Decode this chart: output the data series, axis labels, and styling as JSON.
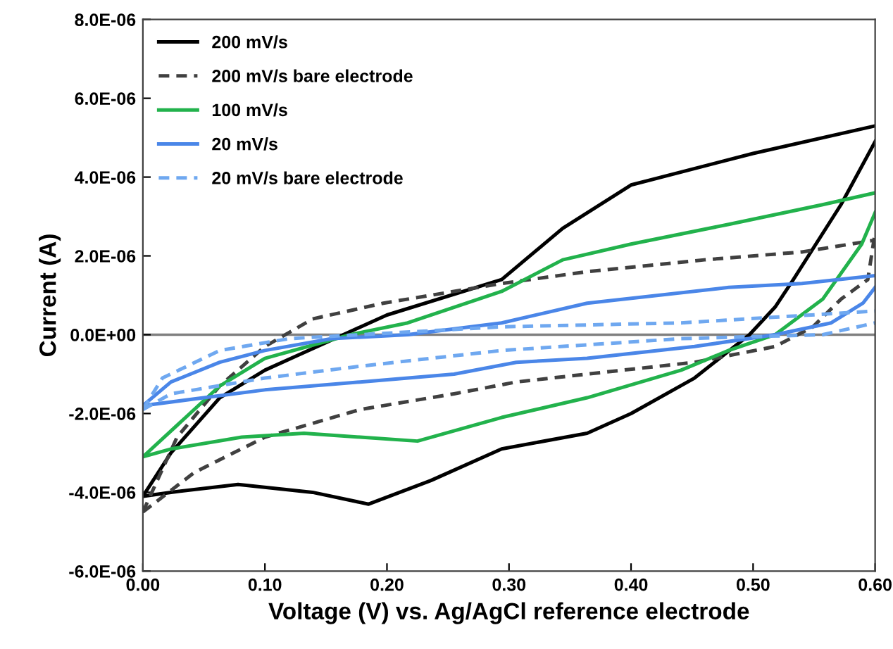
{
  "chart_data": {
    "type": "line",
    "xlabel": "Voltage (V) vs. Ag/AgCl reference electrode",
    "ylabel": "Current (A)",
    "xlim": [
      0,
      0.6
    ],
    "ylim": [
      -6e-06,
      8e-06
    ],
    "xticks": [
      {
        "value": 0,
        "label": "0.00"
      },
      {
        "value": 0.1,
        "label": "0.10"
      },
      {
        "value": 0.2,
        "label": "0.20"
      },
      {
        "value": 0.3,
        "label": "0.30"
      },
      {
        "value": 0.4,
        "label": "0.40"
      },
      {
        "value": 0.5,
        "label": "0.50"
      },
      {
        "value": 0.6,
        "label": "0.60"
      }
    ],
    "yticks": [
      {
        "value": -6e-06,
        "label": "-6.0E-06"
      },
      {
        "value": -4e-06,
        "label": "-4.0E-06"
      },
      {
        "value": -2e-06,
        "label": "-2.0E-06"
      },
      {
        "value": 0,
        "label": "0.0E+00"
      },
      {
        "value": 2e-06,
        "label": "2.0E-06"
      },
      {
        "value": 4e-06,
        "label": "4.0E-06"
      },
      {
        "value": 6e-06,
        "label": "6.0E-06"
      },
      {
        "value": 8e-06,
        "label": "8.0E-06"
      }
    ],
    "grid": false,
    "legend": "top left",
    "marker": "none",
    "ref_lines": [
      {
        "axis": "y",
        "value": 0,
        "color": "#808080",
        "line_style": "solid"
      }
    ],
    "series": [
      {
        "name": "200 mV/s",
        "color": "#000000",
        "line_style": "solid",
        "x": [
          0,
          0.023,
          0.078,
          0.139,
          0.185,
          0.236,
          0.294,
          0.364,
          0.4,
          0.452,
          0.497,
          0.518,
          0.533,
          0.572,
          0.6
        ],
        "values": [
          -4.1e-06,
          -4e-06,
          -3.8e-06,
          -4e-06,
          -4.3e-06,
          -3.7e-06,
          -2.9e-06,
          -2.5e-06,
          -2e-06,
          -1.1e-06,
          0,
          7e-07,
          1.4e-06,
          3.3e-06,
          4.9e-06
        ]
      },
      {
        "color": "#000000",
        "line_style": "solid",
        "x": [
          0,
          0.023,
          0.063,
          0.1,
          0.15,
          0.2,
          0.294,
          0.344,
          0.4,
          0.5,
          0.6
        ],
        "values": [
          -4.1e-06,
          -3e-06,
          -1.6e-06,
          -9e-07,
          -2e-07,
          5e-07,
          1.4e-06,
          2.7e-06,
          3.8e-06,
          4.6e-06,
          5.3e-06
        ]
      },
      {
        "name": "200 mV/s bare electrode",
        "color": "#404040",
        "line_style": "dashed",
        "x": [
          0,
          0.042,
          0.1,
          0.178,
          0.255,
          0.306,
          0.364,
          0.452,
          0.518,
          0.549,
          0.572,
          0.594,
          0.6
        ],
        "values": [
          -4.5e-06,
          -3.5e-06,
          -2.6e-06,
          -1.9e-06,
          -1.5e-06,
          -1.2e-06,
          -1e-06,
          -7e-07,
          -3e-07,
          2e-07,
          9e-07,
          1.4e-06,
          2.6e-06
        ]
      },
      {
        "color": "#404040",
        "line_style": "dashed",
        "x": [
          0,
          0.028,
          0.063,
          0.1,
          0.139,
          0.197,
          0.294,
          0.364,
          0.46,
          0.54,
          0.6
        ],
        "values": [
          -4.5e-06,
          -2.6e-06,
          -1.3e-06,
          -3e-07,
          4e-07,
          8e-07,
          1.3e-06,
          1.6e-06,
          1.9e-06,
          2.1e-06,
          2.4e-06
        ]
      },
      {
        "name": "100 mV/s",
        "color": "#22b24c",
        "line_style": "solid",
        "x": [
          0,
          0.023,
          0.081,
          0.132,
          0.178,
          0.225,
          0.294,
          0.364,
          0.441,
          0.48,
          0.518,
          0.557,
          0.589,
          0.6
        ],
        "values": [
          -3.1e-06,
          -2.9e-06,
          -2.6e-06,
          -2.5e-06,
          -2.6e-06,
          -2.7e-06,
          -2.1e-06,
          -1.6e-06,
          -9e-07,
          -4e-07,
          0,
          9e-07,
          2.3e-06,
          3.1e-06
        ]
      },
      {
        "color": "#22b24c",
        "line_style": "solid",
        "x": [
          0,
          0.063,
          0.1,
          0.17,
          0.217,
          0.294,
          0.344,
          0.4,
          0.48,
          0.557,
          0.6
        ],
        "values": [
          -3.1e-06,
          -1.3e-06,
          -6e-07,
          0,
          3e-07,
          1.1e-06,
          1.9e-06,
          2.3e-06,
          2.8e-06,
          3.3e-06,
          3.6e-06
        ]
      },
      {
        "name": "20 mV/s",
        "color": "#4a86e8",
        "line_style": "solid",
        "x": [
          0,
          0.05,
          0.1,
          0.178,
          0.255,
          0.306,
          0.364,
          0.452,
          0.518,
          0.564,
          0.59,
          0.6
        ],
        "values": [
          -1.8e-06,
          -1.6e-06,
          -1.4e-06,
          -1.2e-06,
          -1e-06,
          -7e-07,
          -6e-07,
          -3e-07,
          0,
          3e-07,
          8e-07,
          1.2e-06
        ]
      },
      {
        "color": "#4a86e8",
        "line_style": "solid",
        "x": [
          0,
          0.023,
          0.063,
          0.1,
          0.155,
          0.217,
          0.294,
          0.364,
          0.48,
          0.54,
          0.6
        ],
        "values": [
          -1.8e-06,
          -1.2e-06,
          -7e-07,
          -4e-07,
          -1e-07,
          0,
          3e-07,
          8e-07,
          1.2e-06,
          1.3e-06,
          1.5e-06
        ]
      },
      {
        "name": "20 mV/s bare electrode",
        "color": "#6fa8f0",
        "line_style": "dashed",
        "x": [
          0,
          0.023,
          0.1,
          0.178,
          0.294,
          0.441,
          0.557,
          0.6
        ],
        "values": [
          -1.9e-06,
          -1.5e-06,
          -1.1e-06,
          -8e-07,
          -4e-07,
          -1e-07,
          0,
          3e-07
        ]
      },
      {
        "color": "#6fa8f0",
        "line_style": "dashed",
        "x": [
          0,
          0.016,
          0.063,
          0.12,
          0.178,
          0.294,
          0.441,
          0.6
        ],
        "values": [
          -1.9e-06,
          -1.1e-06,
          -4e-07,
          -1e-07,
          0,
          2e-07,
          3e-07,
          6e-07
        ]
      }
    ]
  }
}
